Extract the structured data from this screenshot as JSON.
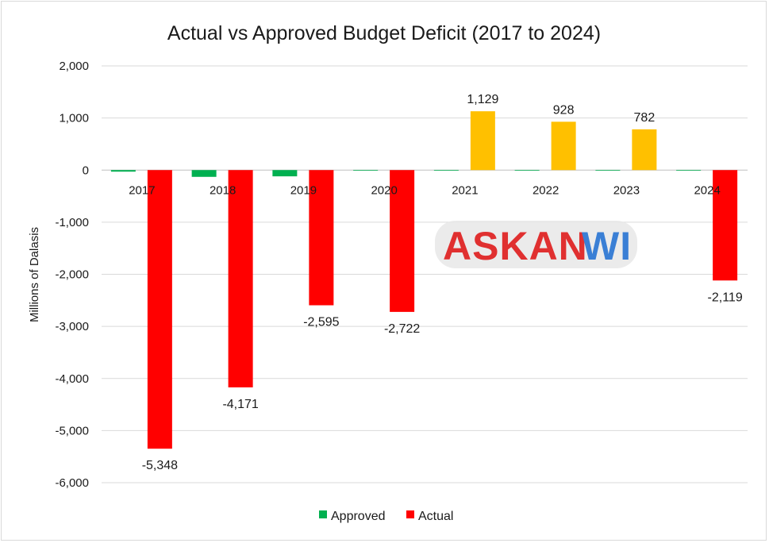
{
  "chart_data": {
    "type": "bar",
    "title": "Actual vs Approved Budget Deficit (2017 to 2024)",
    "xlabel": "",
    "ylabel": "Millions of Dalasis",
    "ylim": [
      -6000,
      2000
    ],
    "yticks": [
      2000,
      1000,
      0,
      -1000,
      -2000,
      -3000,
      -4000,
      -5000,
      -6000
    ],
    "ytick_labels": [
      "2,000",
      "1,000",
      "0",
      "-1,000",
      "-2,000",
      "-3,000",
      "-4,000",
      "-5,000",
      "-6,000"
    ],
    "categories": [
      "2017",
      "2018",
      "2019",
      "2020",
      "2021",
      "2022",
      "2023",
      "2024"
    ],
    "series": [
      {
        "name": "Approved",
        "color": "#00b050",
        "values": [
          -30,
          -130,
          -120,
          -5,
          -5,
          -5,
          -5,
          -5
        ],
        "labels": [
          "",
          "",
          "",
          "",
          "",
          "",
          "",
          ""
        ]
      },
      {
        "name": "Actual",
        "color": "#ff0000",
        "positive_color": "#ffc000",
        "values": [
          -5348,
          -4171,
          -2595,
          -2722,
          1129,
          928,
          782,
          -2119
        ],
        "labels": [
          "-5,348",
          "-4,171",
          "-2,595",
          "-2,722",
          "1,129",
          "928",
          "782",
          "-2,119"
        ]
      }
    ],
    "grid": true,
    "legend_position": "bottom"
  },
  "watermark": {
    "text_left": "ASKAN",
    "text_right": "WI",
    "color_left": "#e03030",
    "color_right": "#3a7fd5"
  }
}
